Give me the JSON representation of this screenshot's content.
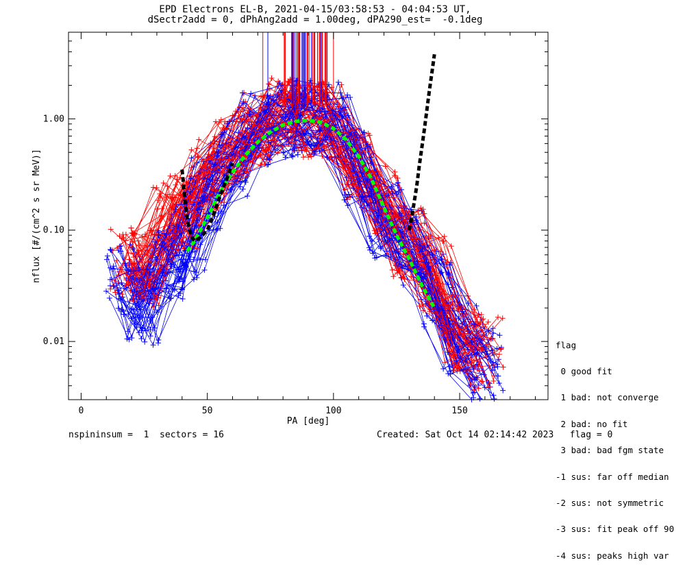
{
  "title_line1": "EPD Electrons EL-B, 2021-04-15/03:58:53 - 04:04:53 UT,",
  "title_line2": "dSectr2add = 0, dPhAng2add = 1.00deg, dPA290_est=  -0.1deg",
  "footer_left": "nspininsum =  1  sectors = 16",
  "footer_right": "Created: Sat Oct 14 02:14:42 2023   flag = 0",
  "legend": {
    "title": "flag",
    "items": [
      " 0 good fit",
      " 1 bad: not converge",
      " 2 bad: no fit",
      " 3 bad: bad fgm state",
      "-1 sus: far off median",
      "-2 sus: not symmetric",
      "-3 sus: fit peak off 90",
      "-4 sus: peaks high var"
    ]
  },
  "colors": {
    "red": "#ff0000",
    "blue": "#0000ff",
    "fit": "#00ff00",
    "model": "#000000"
  },
  "chart_data": {
    "type": "line",
    "xlabel": "PA [deg]",
    "ylabel": "nflux [#/(cm^2 s sr MeV)]",
    "xlim": [
      -5,
      185
    ],
    "ylim_log": [
      0.003,
      6
    ],
    "y_scale": "log",
    "xticks": [
      0,
      50,
      100,
      150
    ],
    "yticks": [
      0.01,
      0.1,
      1.0
    ],
    "ytick_labels": [
      "0.01",
      "0.10",
      "1.00"
    ],
    "series": [
      {
        "color": "red",
        "x": [
          18,
          25,
          35,
          42,
          50,
          60,
          70,
          80,
          90,
          100,
          110,
          120,
          130,
          140,
          150,
          160
        ],
        "y": [
          0.05,
          0.045,
          0.12,
          0.15,
          0.3,
          0.6,
          0.85,
          1.05,
          1.0,
          0.95,
          0.4,
          0.18,
          0.08,
          0.04,
          0.012,
          0.008
        ]
      },
      {
        "color": "blue",
        "x": [
          17,
          25,
          35,
          42,
          50,
          60,
          70,
          80,
          90,
          100,
          110,
          120,
          130,
          140,
          150,
          160
        ],
        "y": [
          0.035,
          0.02,
          0.05,
          0.08,
          0.2,
          0.45,
          0.8,
          1.0,
          1.02,
          0.98,
          0.35,
          0.12,
          0.07,
          0.03,
          0.01,
          0.006
        ]
      },
      {
        "name": "fit",
        "color": "fit",
        "x": [
          42,
          45,
          50,
          55,
          60,
          65,
          70,
          75,
          80,
          85,
          90,
          95,
          100,
          105,
          110,
          115,
          120,
          125,
          130,
          135,
          140
        ],
        "y": [
          0.065,
          0.08,
          0.13,
          0.22,
          0.33,
          0.47,
          0.62,
          0.76,
          0.88,
          0.95,
          0.97,
          0.93,
          0.82,
          0.65,
          0.46,
          0.29,
          0.16,
          0.09,
          0.055,
          0.032,
          0.02
        ]
      },
      {
        "name": "model",
        "color": "model",
        "x": [
          40,
          41,
          42,
          43,
          44,
          45,
          47,
          50,
          52,
          55,
          58,
          60,
          130,
          131,
          132,
          133,
          134,
          135,
          136,
          137,
          138,
          139,
          140
        ],
        "y": [
          0.35,
          0.2,
          0.13,
          0.1,
          0.085,
          0.08,
          0.085,
          0.1,
          0.13,
          0.2,
          0.3,
          0.4,
          0.1,
          0.13,
          0.18,
          0.25,
          0.38,
          0.55,
          0.8,
          1.2,
          1.8,
          2.6,
          3.8
        ]
      }
    ],
    "legend_position": "right"
  }
}
